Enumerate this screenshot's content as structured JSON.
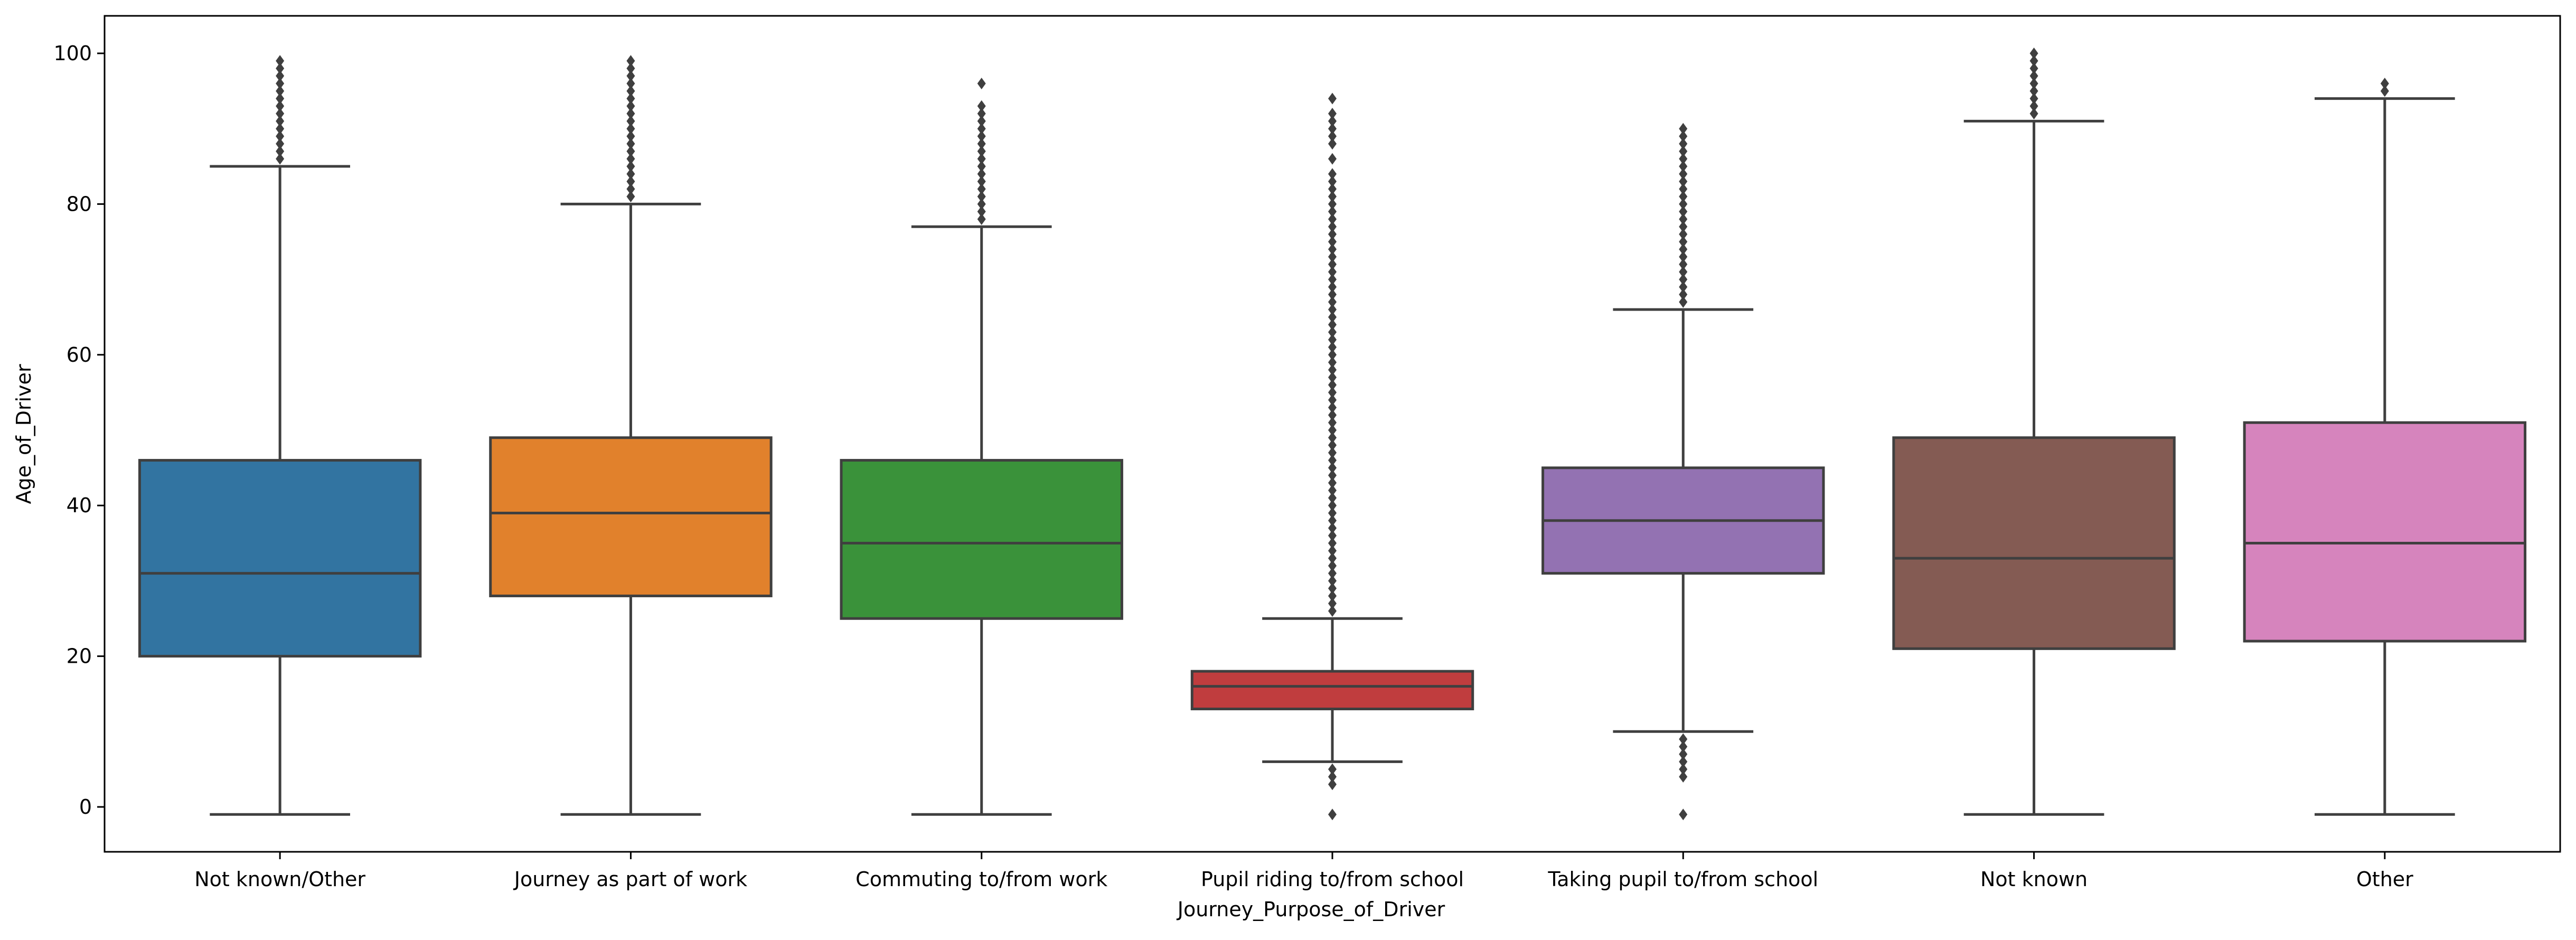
{
  "chart_data": {
    "type": "box",
    "xlabel": "Journey_Purpose_of_Driver",
    "ylabel": "Age_of_Driver",
    "ylim": [
      -6,
      105
    ],
    "yticks": [
      0,
      20,
      40,
      60,
      80,
      100
    ],
    "grid": false,
    "categories": [
      "Not known/Other",
      "Journey as part of work",
      "Commuting to/from work",
      "Pupil riding to/from school",
      "Taking pupil to/from school",
      "Not known",
      "Other"
    ],
    "boxes": [
      {
        "category": "Not known/Other",
        "color": "#3274a1",
        "whisker_low": -1,
        "q1": 20,
        "median": 31,
        "q3": 46,
        "whisker_high": 85,
        "outliers": [
          86,
          87,
          88,
          89,
          90,
          91,
          92,
          93,
          94,
          95,
          96,
          97,
          98,
          99
        ]
      },
      {
        "category": "Journey as part of work",
        "color": "#e1812c",
        "whisker_low": -1,
        "q1": 28,
        "median": 39,
        "q3": 49,
        "whisker_high": 80,
        "outliers": [
          81,
          82,
          83,
          84,
          85,
          86,
          87,
          88,
          89,
          90,
          91,
          92,
          93,
          94,
          95,
          96,
          97,
          98,
          99
        ]
      },
      {
        "category": "Commuting to/from work",
        "color": "#3a923a",
        "whisker_low": -1,
        "q1": 25,
        "median": 35,
        "q3": 46,
        "whisker_high": 77,
        "outliers": [
          78,
          79,
          80,
          81,
          82,
          83,
          84,
          85,
          86,
          87,
          88,
          89,
          90,
          91,
          92,
          93,
          96
        ]
      },
      {
        "category": "Pupil riding to/from school",
        "color": "#c03d3e",
        "whisker_low": 6,
        "q1": 13,
        "median": 16,
        "q3": 18,
        "whisker_high": 25,
        "outliers": [
          -1,
          3,
          4,
          5,
          26,
          27,
          28,
          29,
          30,
          31,
          32,
          33,
          34,
          35,
          36,
          37,
          38,
          39,
          40,
          41,
          42,
          43,
          44,
          45,
          46,
          47,
          48,
          49,
          50,
          51,
          52,
          53,
          54,
          55,
          56,
          57,
          58,
          59,
          60,
          61,
          62,
          63,
          64,
          65,
          66,
          67,
          68,
          69,
          70,
          71,
          72,
          73,
          74,
          75,
          76,
          77,
          78,
          79,
          80,
          81,
          82,
          83,
          84,
          86,
          88,
          89,
          90,
          91,
          92,
          94
        ]
      },
      {
        "category": "Taking pupil to/from school",
        "color": "#9372b2",
        "whisker_low": 10,
        "q1": 31,
        "median": 38,
        "q3": 45,
        "whisker_high": 66,
        "outliers": [
          -1,
          4,
          5,
          6,
          7,
          8,
          9,
          67,
          68,
          69,
          70,
          71,
          72,
          73,
          74,
          75,
          76,
          77,
          78,
          79,
          80,
          81,
          82,
          83,
          84,
          85,
          86,
          87,
          88,
          89,
          90
        ]
      },
      {
        "category": "Not known",
        "color": "#845b53",
        "whisker_low": -1,
        "q1": 21,
        "median": 33,
        "q3": 49,
        "whisker_high": 91,
        "outliers": [
          92,
          93,
          94,
          95,
          96,
          97,
          98,
          99,
          100
        ]
      },
      {
        "category": "Other",
        "color": "#d684bd",
        "whisker_low": -1,
        "q1": 22,
        "median": 35,
        "q3": 51,
        "whisker_high": 94,
        "outliers": [
          95,
          96
        ]
      }
    ]
  }
}
